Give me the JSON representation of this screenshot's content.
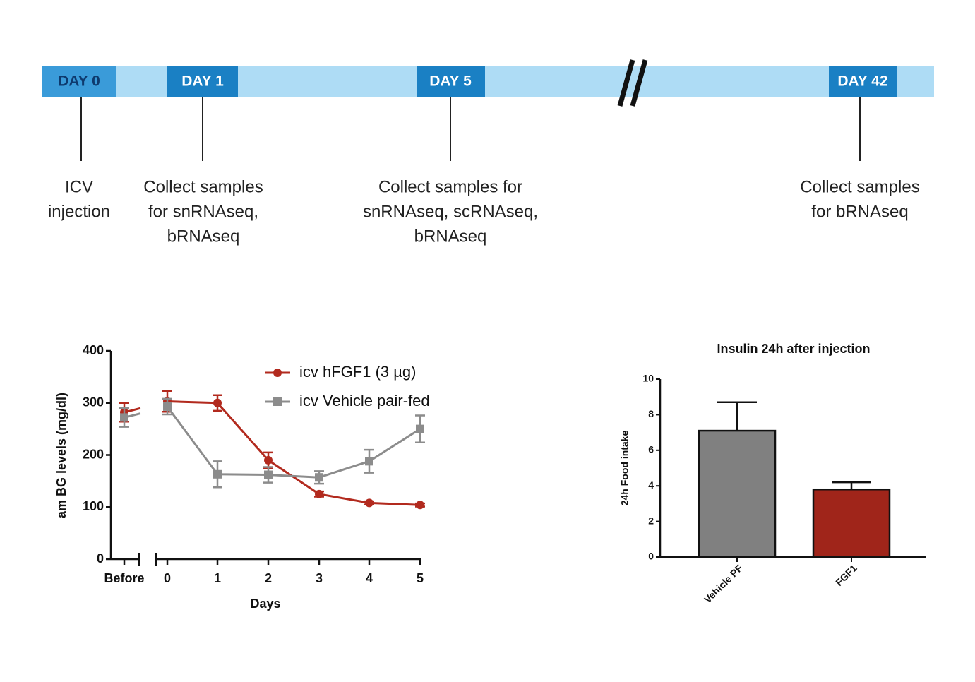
{
  "timeline": {
    "events": [
      {
        "day": "DAY 0",
        "label": [
          "ICV",
          "injection"
        ]
      },
      {
        "day": "DAY 1",
        "label": [
          "Collect samples",
          "for snRNAseq,",
          "bRNAseq"
        ]
      },
      {
        "day": "DAY 5",
        "label": [
          "Collect samples for",
          "snRNAseq, scRNAseq,",
          "bRNAseq"
        ]
      },
      {
        "day": "DAY 42",
        "label": [
          "Collect samples",
          "for bRNAseq"
        ]
      }
    ]
  },
  "chart_data": [
    {
      "type": "line",
      "x_label": "Days",
      "y_label": "am BG levels (mg/dl)",
      "categories": [
        "Before",
        "0",
        "1",
        "2",
        "3",
        "4",
        "5"
      ],
      "ylim": [
        0,
        400
      ],
      "yticks": [
        0,
        100,
        200,
        300,
        400
      ],
      "series": [
        {
          "name": "icv hFGF1 (3 µg)",
          "color": "#b22a1e",
          "marker": "circle",
          "values": [
            282,
            303,
            300,
            190,
            125,
            108,
            104
          ],
          "errors": [
            18,
            20,
            15,
            15,
            5,
            3,
            3
          ]
        },
        {
          "name": "icv Vehicle pair-fed",
          "color": "#8c8c8c",
          "marker": "square",
          "values": [
            272,
            293,
            163,
            162,
            157,
            188,
            250
          ],
          "errors": [
            18,
            15,
            25,
            15,
            12,
            22,
            26
          ]
        }
      ]
    },
    {
      "type": "bar",
      "title": "Insulin 24h after injection",
      "y_label": "24h  Food intake",
      "categories": [
        "Vehicle PF",
        "FGF1"
      ],
      "values": [
        7.1,
        3.8
      ],
      "errors": [
        1.6,
        0.4
      ],
      "colors": [
        "#808080",
        "#a0251a"
      ],
      "ylim": [
        0,
        10
      ],
      "yticks": [
        0,
        2,
        4,
        6,
        8,
        10
      ]
    }
  ]
}
